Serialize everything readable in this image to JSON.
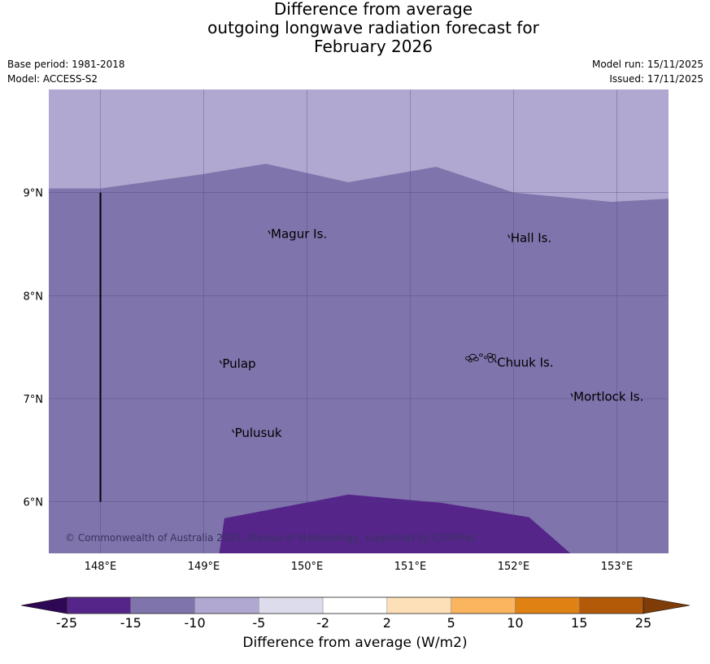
{
  "title": {
    "line1": "Difference from average",
    "line2": "outgoing longwave radiation forecast for",
    "line3": "February 2026"
  },
  "meta": {
    "base_period": "Base period: 1981-2018",
    "model": "Model: ACCESS-S2",
    "model_run": "Model run: 15/11/2025",
    "issued": "Issued: 17/11/2025"
  },
  "map": {
    "lon_range": [
      147.5,
      153.5
    ],
    "lat_range": [
      5.5,
      10.0
    ],
    "lon_ticks": [
      {
        "value": 148,
        "label": "148°E"
      },
      {
        "value": 149,
        "label": "149°E"
      },
      {
        "value": 150,
        "label": "150°E"
      },
      {
        "value": 151,
        "label": "151°E"
      },
      {
        "value": 152,
        "label": "152°E"
      },
      {
        "value": 153,
        "label": "153°E"
      }
    ],
    "lat_ticks": [
      {
        "value": 9,
        "label": "9°N"
      },
      {
        "value": 8,
        "label": "8°N"
      },
      {
        "value": 7,
        "label": "7°N"
      },
      {
        "value": 6,
        "label": "6°N"
      }
    ],
    "colors": {
      "band_minus5_minus10": "#b0a8d0",
      "band_minus10_minus15": "#7f74ab",
      "band_minus15_minus25": "#55258a",
      "grid": "#4a3f78"
    },
    "upper_boundary": [
      [
        147.5,
        9.04
      ],
      [
        148.0,
        9.04
      ],
      [
        149.0,
        9.18
      ],
      [
        149.6,
        9.28
      ],
      [
        150.4,
        9.1
      ],
      [
        151.25,
        9.25
      ],
      [
        152.0,
        9.0
      ],
      [
        152.95,
        8.91
      ],
      [
        153.5,
        8.94
      ]
    ],
    "lower_region": [
      [
        149.15,
        5.5
      ],
      [
        149.2,
        5.84
      ],
      [
        150.4,
        6.07
      ],
      [
        151.3,
        5.99
      ],
      [
        152.15,
        5.85
      ],
      [
        152.55,
        5.5
      ]
    ],
    "meridian_line": {
      "lon": 148.0,
      "lat_start": 9.0,
      "lat_end": 6.0
    },
    "places": [
      {
        "name": "Magur Is.",
        "lon": 149.65,
        "lat": 8.56
      },
      {
        "name": "Hall Is.",
        "lon": 151.97,
        "lat": 8.52
      },
      {
        "name": "Pulap",
        "lon": 149.18,
        "lat": 7.3
      },
      {
        "name": "Chuuk Is.",
        "lon": 151.84,
        "lat": 7.31
      },
      {
        "name": "Mortlock Is.",
        "lon": 152.58,
        "lat": 6.98
      },
      {
        "name": "Pulusuk",
        "lon": 149.3,
        "lat": 6.63
      }
    ],
    "copyright": "© Commonwealth of Australia 2025, Bureau of Meteorology, supported by COSPPac"
  },
  "colorbar": {
    "label": "Difference from average (W/m2)",
    "ticks": [
      "-25",
      "-15",
      "-10",
      "-5",
      "-2",
      "2",
      "5",
      "10",
      "15",
      "25"
    ],
    "colors": [
      "#55258a",
      "#7f74ab",
      "#b0a8d0",
      "#dcdcec",
      "#ffffff",
      "#fde0b8",
      "#fbb55e",
      "#e08114",
      "#b35a09"
    ],
    "extend_low": "#2e0854",
    "extend_high": "#7f3b08"
  }
}
